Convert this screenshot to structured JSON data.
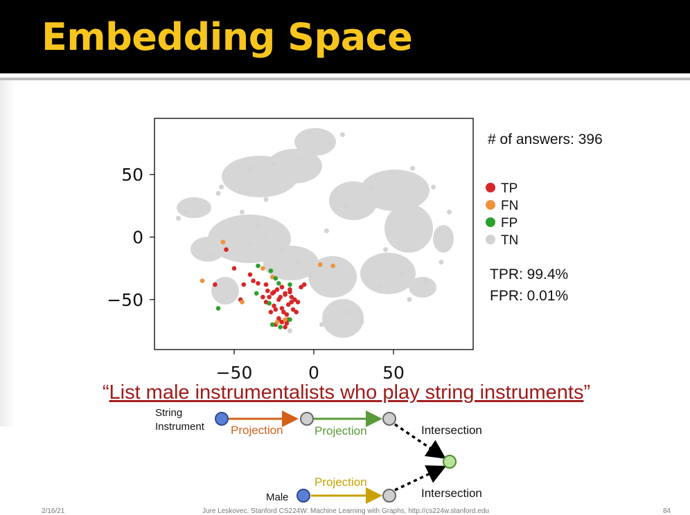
{
  "slide": {
    "title": "Embedding Space",
    "footer_date": "2/16/21",
    "footer_center": "Jure Leskovec, Stanford CS224W: Machine Learning with Graphs, http://cs224w.stanford.edu",
    "page_number": "84"
  },
  "colors": {
    "title": "#f7c51e",
    "TP": "#d62728",
    "FN": "#f0913a",
    "FP": "#2ca02c",
    "TN": "#d3d3d3"
  },
  "stats": {
    "answers": "# of answers: 396",
    "tpr": "TPR: 99.4%",
    "fpr": "FPR: 0.01%"
  },
  "chart_data": {
    "type": "scatter",
    "title": "",
    "xlabel": "",
    "ylabel": "",
    "xlim": [
      -100,
      100
    ],
    "ylim": [
      -90,
      95
    ],
    "xticks": [
      -50,
      0,
      50
    ],
    "yticks": [
      50,
      0,
      -50
    ],
    "x_tick_labels": [
      "−50",
      "0",
      "50"
    ],
    "y_tick_labels": [
      "50",
      "0",
      "−50"
    ],
    "grid": false,
    "legend_placement": "right",
    "series": [
      {
        "name": "TP",
        "x": [
          -28,
          -22,
          -18,
          -14,
          -25,
          -20,
          -16,
          -12,
          -30,
          -24,
          -19,
          -15,
          -26,
          -21,
          -17,
          -13,
          -29,
          -23,
          -18,
          -14,
          -10,
          -27,
          -22,
          -16,
          -11,
          -32,
          -25,
          -20,
          -15,
          -20,
          -24,
          -17,
          -8,
          -6,
          -38,
          -44,
          -55,
          -62,
          -46,
          -40,
          -35,
          -50,
          -22,
          -18,
          -30
        ],
        "y": [
          -48,
          -50,
          -46,
          -52,
          -55,
          -57,
          -54,
          -50,
          -52,
          -58,
          -60,
          -44,
          -45,
          -48,
          -62,
          -58,
          -43,
          -42,
          -45,
          -48,
          -52,
          -60,
          -65,
          -66,
          -60,
          -48,
          -44,
          -40,
          -42,
          -68,
          -70,
          -69,
          -40,
          -38,
          -35,
          -38,
          -10,
          -38,
          -50,
          -30,
          -37,
          -25,
          -66,
          -72,
          -38
        ]
      },
      {
        "name": "FN",
        "x": [
          -57,
          -70,
          -32,
          -26,
          -23,
          4,
          12,
          -45,
          -18
        ],
        "y": [
          -4,
          -35,
          -25,
          -32,
          -68,
          -22,
          -23,
          -52,
          -66
        ]
      },
      {
        "name": "FP",
        "x": [
          -27,
          -35,
          -22,
          -28,
          -15,
          -60,
          -36,
          -26,
          -21,
          -24,
          -15
        ],
        "y": [
          -27,
          -23,
          -37,
          -53,
          -38,
          -57,
          -45,
          -70,
          -72,
          -33,
          -66
        ]
      },
      {
        "name": "TN",
        "x": [
          -40,
          -25,
          -8,
          -58,
          -45,
          -35,
          -30,
          -20,
          -10,
          -2,
          8,
          20,
          36,
          48,
          62,
          75,
          85,
          10,
          18,
          -30,
          -60,
          -75,
          -80,
          -85,
          -65,
          -40,
          45,
          55,
          70,
          80,
          22,
          30,
          60,
          42,
          5,
          -15
        ],
        "y": [
          55,
          58,
          62,
          40,
          20,
          10,
          0,
          -10,
          -20,
          -30,
          5,
          25,
          40,
          52,
          55,
          40,
          20,
          75,
          82,
          30,
          35,
          30,
          20,
          15,
          -15,
          -5,
          -10,
          -30,
          -35,
          -20,
          -60,
          -68,
          -50,
          -40,
          -70,
          -75
        ]
      }
    ]
  },
  "query": {
    "text": "List male instrumentalists who play string instruments",
    "open_quote": "“",
    "close_quote": "”"
  },
  "diagram": {
    "string_instrument_l1": "String",
    "string_instrument_l2": "Instrument",
    "projection_1": "Projection",
    "projection_2": "Projection",
    "projection_3": "Projection",
    "intersection_1": "Intersection",
    "intersection_2": "Intersection",
    "male": "Male"
  }
}
